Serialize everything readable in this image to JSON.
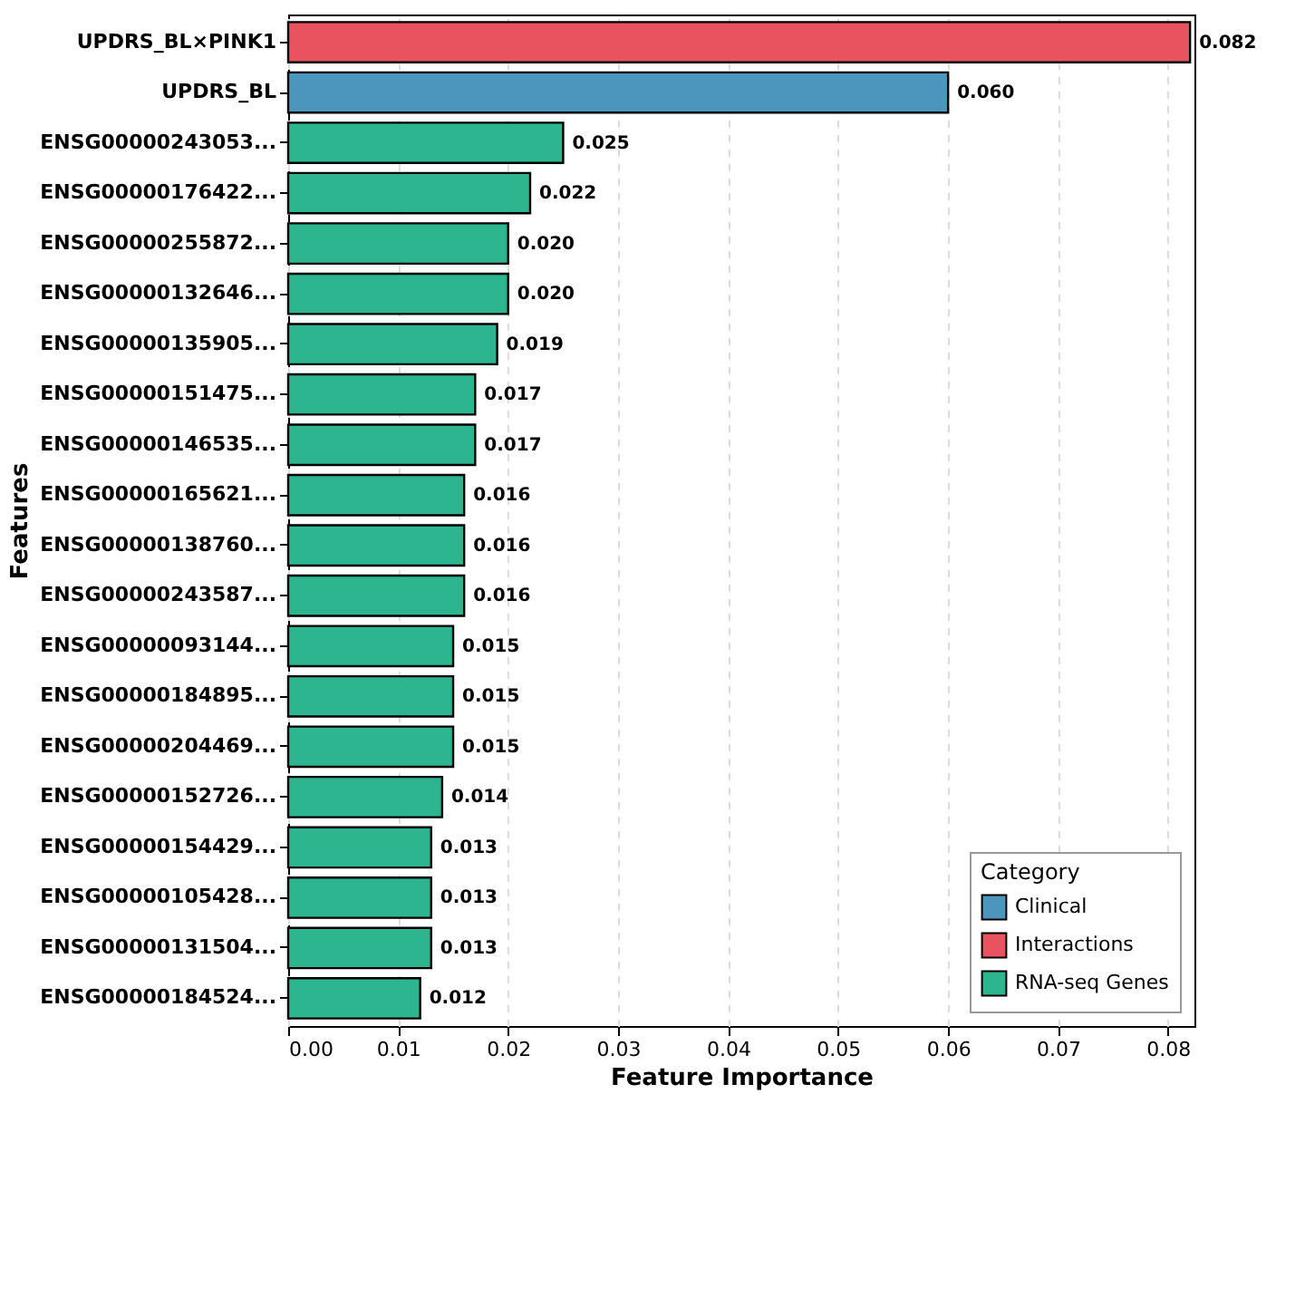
{
  "chart_data": {
    "type": "bar",
    "orientation": "horizontal",
    "xlabel": "Feature Importance",
    "ylabel": "Features",
    "legend_title": "Category",
    "legend": "bottom right",
    "grid": "x",
    "categories": [
      "UPDRS_BL×PINK1",
      "UPDRS_BL",
      "ENSG00000243053...",
      "ENSG00000176422...",
      "ENSG00000255872...",
      "ENSG00000132646...",
      "ENSG00000135905...",
      "ENSG00000151475...",
      "ENSG00000146535...",
      "ENSG00000165621...",
      "ENSG00000138760...",
      "ENSG00000243587...",
      "ENSG00000093144...",
      "ENSG00000184895...",
      "ENSG00000204469...",
      "ENSG00000152726...",
      "ENSG00000154429...",
      "ENSG00000105428...",
      "ENSG00000131504...",
      "ENSG00000184524..."
    ],
    "xlim": [
      0,
      0.0824
    ],
    "xticks": [
      {
        "value": 0,
        "label": "0.00"
      },
      {
        "value": 0.01,
        "label": "0.01"
      },
      {
        "value": 0.02,
        "label": "0.02"
      },
      {
        "value": 0.03,
        "label": "0.03"
      },
      {
        "value": 0.04,
        "label": "0.04"
      },
      {
        "value": 0.05,
        "label": "0.05"
      },
      {
        "value": 0.06,
        "label": "0.06"
      },
      {
        "value": 0.07,
        "label": "0.07"
      },
      {
        "value": 0.08,
        "label": "0.08"
      }
    ],
    "series": [
      {
        "name": "Clinical",
        "color": "#4c96be",
        "values": [
          null,
          0.06,
          null,
          null,
          null,
          null,
          null,
          null,
          null,
          null,
          null,
          null,
          null,
          null,
          null,
          null,
          null,
          null,
          null,
          null
        ],
        "value_labels": [
          null,
          "0.060",
          null,
          null,
          null,
          null,
          null,
          null,
          null,
          null,
          null,
          null,
          null,
          null,
          null,
          null,
          null,
          null,
          null,
          null
        ]
      },
      {
        "name": "Interactions",
        "color": "#e8535f",
        "values": [
          0.082,
          null,
          null,
          null,
          null,
          null,
          null,
          null,
          null,
          null,
          null,
          null,
          null,
          null,
          null,
          null,
          null,
          null,
          null,
          null
        ],
        "value_labels": [
          "0.082",
          null,
          null,
          null,
          null,
          null,
          null,
          null,
          null,
          null,
          null,
          null,
          null,
          null,
          null,
          null,
          null,
          null,
          null,
          null
        ]
      },
      {
        "name": "RNA-seq Genes",
        "color": "#2cb58f",
        "values": [
          null,
          null,
          0.025,
          0.022,
          0.02,
          0.02,
          0.019,
          0.017,
          0.017,
          0.016,
          0.016,
          0.016,
          0.015,
          0.015,
          0.015,
          0.014,
          0.013,
          0.013,
          0.013,
          0.012
        ],
        "value_labels": [
          null,
          null,
          "0.025",
          "0.022",
          "0.020",
          "0.020",
          "0.019",
          "0.017",
          "0.017",
          "0.016",
          "0.016",
          "0.016",
          "0.015",
          "0.015",
          "0.015",
          "0.014",
          "0.013",
          "0.013",
          "0.013",
          "0.012"
        ]
      }
    ]
  }
}
